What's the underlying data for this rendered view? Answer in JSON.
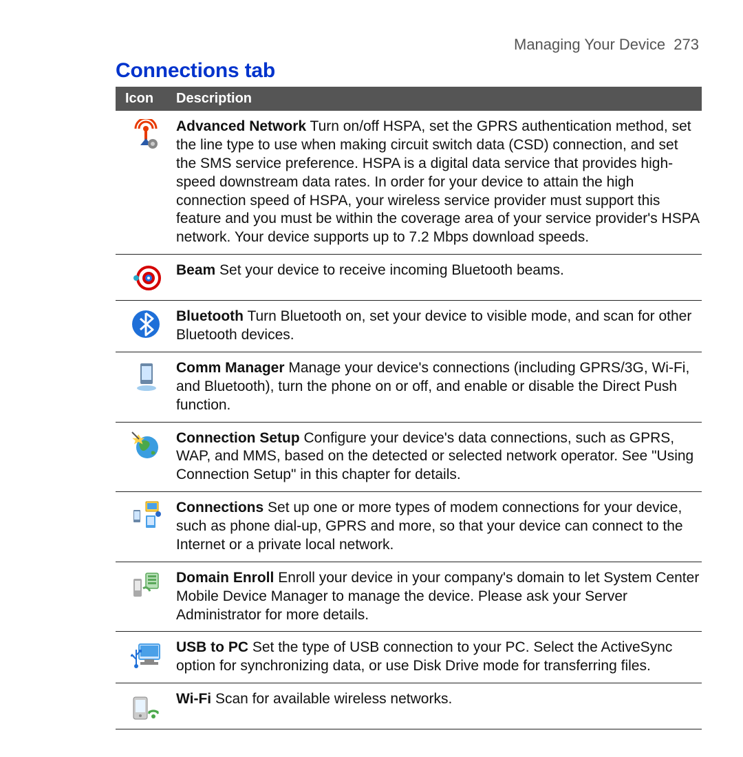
{
  "header": {
    "chapter": "Managing Your Device",
    "page_number": "273"
  },
  "section_title": "Connections tab",
  "table_header": {
    "icon": "Icon",
    "description": "Description"
  },
  "rows": [
    {
      "icon": "antenna-gear",
      "title": "Advanced Network",
      "desc": "Turn on/off HSPA, set the GPRS authentication method, set the line type to use when making circuit switch data (CSD) connection, and set the SMS service preference. HSPA is a digital data service that provides high-speed downstream data rates. In order for your device to attain the high connection speed of HSPA, your wireless service provider must support this feature and you must be within the coverage area of your service provider's HSPA network. Your device supports up to 7.2 Mbps download speeds."
    },
    {
      "icon": "beam-target",
      "title": "Beam",
      "desc": "Set your device to receive incoming Bluetooth beams."
    },
    {
      "icon": "bluetooth",
      "title": "Bluetooth",
      "desc": "Turn Bluetooth on, set your device to visible mode, and scan for other Bluetooth devices."
    },
    {
      "icon": "comm-manager",
      "title": "Comm Manager",
      "desc": "Manage your device's connections (including GPRS/3G, Wi-Fi, and Bluetooth), turn the phone on or off, and enable or disable the Direct Push function."
    },
    {
      "icon": "globe-wand",
      "title": "Connection Setup",
      "desc": "Configure your device's data connections, such as GPRS, WAP, and MMS, based on the detected or selected network operator. See \"Using Connection Setup\" in this chapter for details."
    },
    {
      "icon": "connections",
      "title": "Connections",
      "desc": "Set up one or more types of modem connections for your device, such as phone dial-up, GPRS and more, so that your device can connect to the Internet or a private local network."
    },
    {
      "icon": "domain-enroll",
      "title": "Domain Enroll",
      "desc": "Enroll your device in your company's domain to let System Center Mobile Device Manager to manage the device. Please ask your Server Administrator for more details."
    },
    {
      "icon": "usb-pc",
      "title": "USB to PC",
      "desc": "Set the type of USB connection to your PC. Select the ActiveSync option for synchronizing data, or use Disk Drive mode for transferring files."
    },
    {
      "icon": "wifi",
      "title": "Wi-Fi",
      "desc": "Scan for available wireless networks."
    }
  ],
  "style": {
    "title_color": "#0033cc",
    "header_bar_bg": "#555555",
    "header_bar_fg": "#ffffff",
    "body_text_color": "#111111",
    "chapter_color": "#555555",
    "row_border_color": "#222222",
    "icon_colors": {
      "antenna": "#e83a00",
      "gear": "#555555",
      "beam_outer": "#d40000",
      "beam_inner": "#1e73e8",
      "beam_dot": "#28a8c8",
      "bluetooth_bg": "#1e6fd8",
      "bluetooth_fg": "#ffffff",
      "device_body": "#6a88a8",
      "device_screen": "#cfe6ff",
      "globe": "#3a9de0",
      "globe_land": "#4aa84a",
      "wand_star": "#ffd34a",
      "monitor": "#4aa0e8",
      "phone": "#6a88a8",
      "dot": "#2a68c8",
      "domain_phone": "#888888",
      "domain_server": "#5aa85a",
      "usb_symbol": "#1e6fd8",
      "wifi_arc": "#4aa84a"
    }
  }
}
